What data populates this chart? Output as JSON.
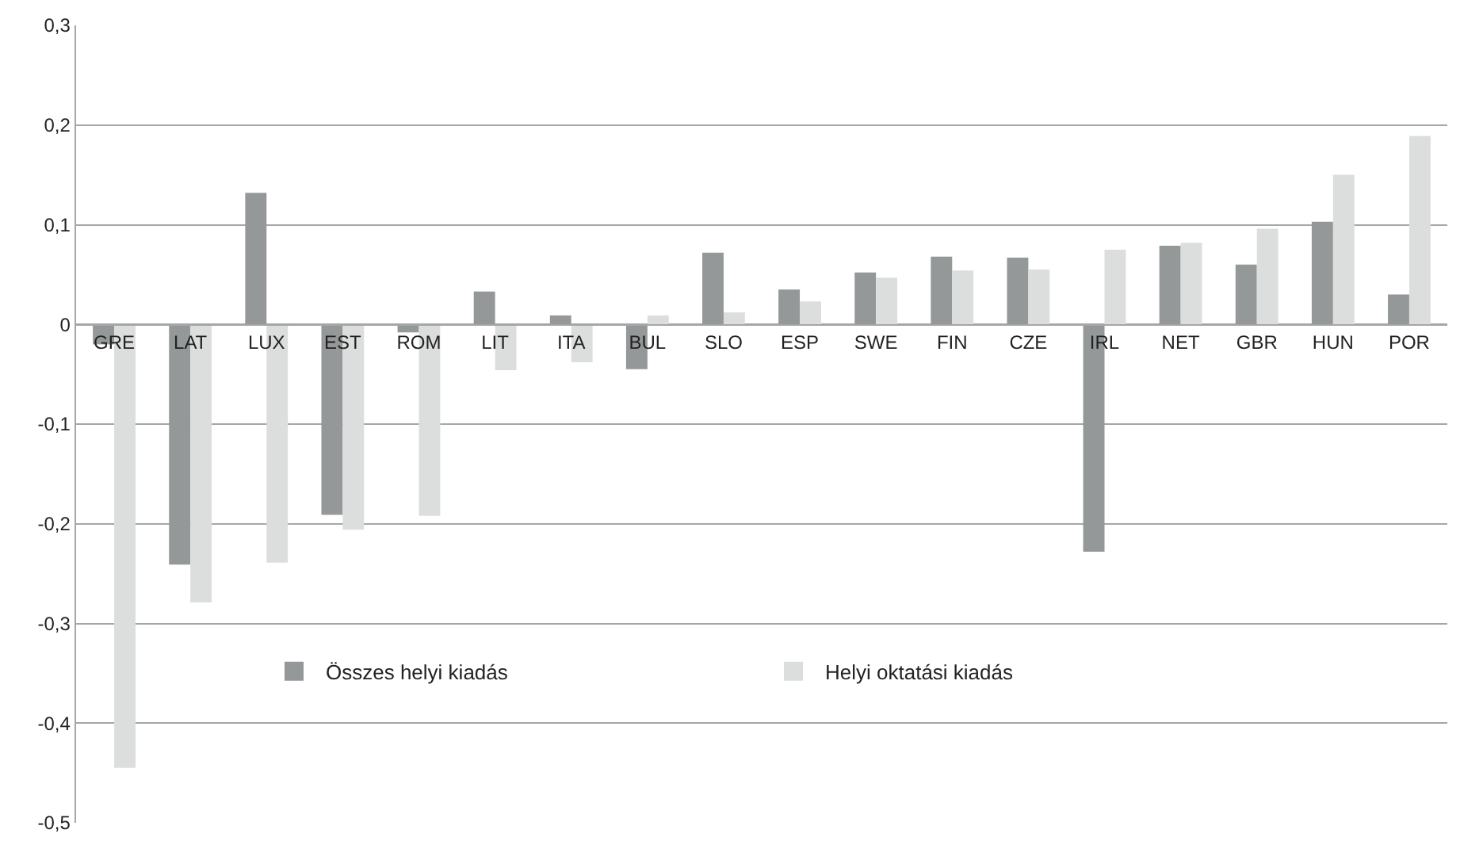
{
  "chart_data": {
    "type": "bar",
    "categories": [
      "GRE",
      "LAT",
      "LUX",
      "EST",
      "ROM",
      "LIT",
      "ITA",
      "BUL",
      "SLO",
      "ESP",
      "SWE",
      "FIN",
      "CZE",
      "IRL",
      "NET",
      "GBR",
      "HUN",
      "POR"
    ],
    "series": [
      {
        "name": "Összes helyi kiadás",
        "color": "#949898",
        "values": [
          -0.02,
          -0.241,
          0.132,
          -0.191,
          -0.008,
          0.033,
          0.009,
          -0.045,
          0.072,
          0.035,
          0.052,
          0.068,
          0.067,
          -0.228,
          0.079,
          0.06,
          0.103,
          0.03
        ]
      },
      {
        "name": "Helyi oktatási kiadás",
        "color": "#dcdedd",
        "values": [
          -0.445,
          -0.279,
          -0.239,
          -0.206,
          -0.192,
          -0.046,
          -0.038,
          0.009,
          0.012,
          0.023,
          0.047,
          0.054,
          0.055,
          0.075,
          0.082,
          0.096,
          0.15,
          0.189
        ]
      }
    ],
    "ylim": [
      -0.5,
      0.3
    ],
    "yticks": [
      {
        "value": -0.5,
        "label": "-0,5"
      },
      {
        "value": -0.4,
        "label": "-0,4"
      },
      {
        "value": -0.3,
        "label": "-0,3"
      },
      {
        "value": -0.2,
        "label": "-0,2"
      },
      {
        "value": -0.1,
        "label": "-0,1"
      },
      0,
      {
        "value": 0.1,
        "label": "0,1"
      },
      {
        "value": 0.2,
        "label": "0,2"
      },
      {
        "value": 0.3,
        "label": "0,3"
      }
    ],
    "grid": "y",
    "legend": "bottom"
  }
}
